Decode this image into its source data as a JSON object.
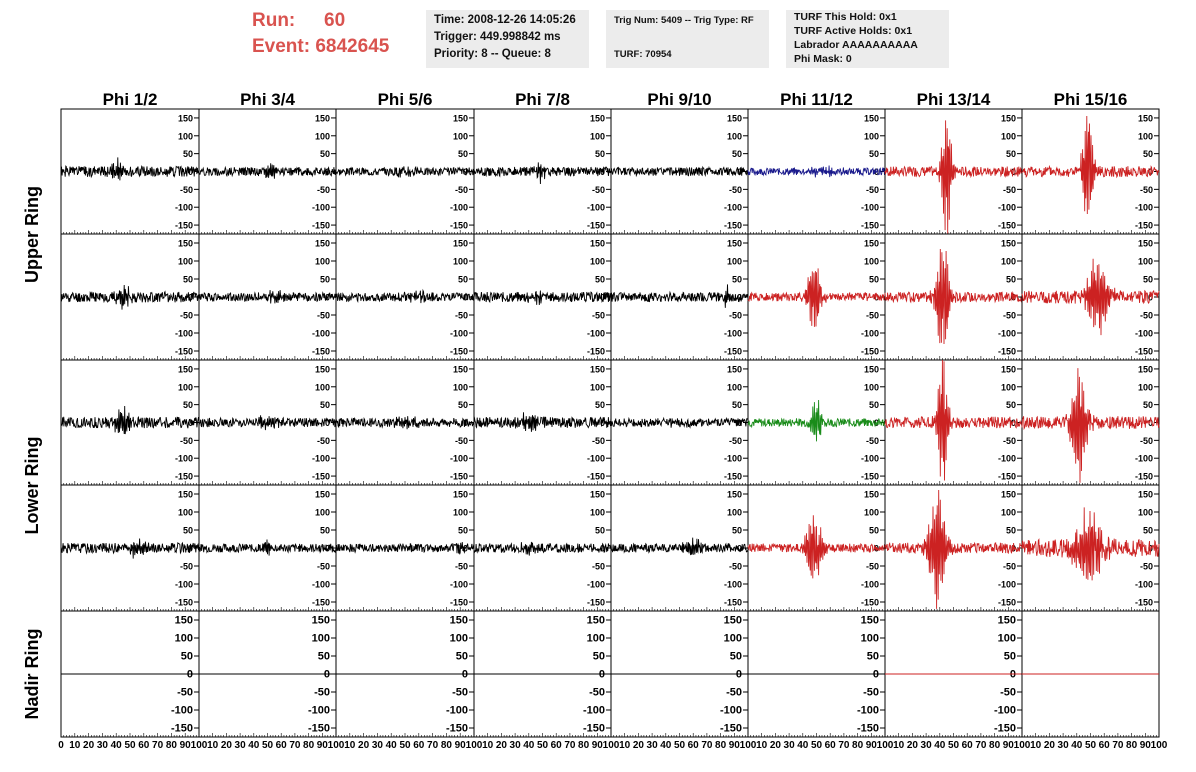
{
  "header": {
    "run_label": "Run:",
    "run_value": "60",
    "event_label": "Event:",
    "event_value": "6842645",
    "time": "Time: 2008-12-26 14:05:26",
    "trigger": "Trigger: 449.998842 ms",
    "priority": "Priority: 8 -- Queue: 8",
    "trig_num": "Trig Num: 5409 -- Trig Type: RF",
    "turf": "TURF: 70954",
    "turf_this_hold": "TURF This Hold: 0x1",
    "turf_active_holds": "TURF Active Holds: 0x1",
    "labrador": "Labrador AAAAAAAAAA",
    "phi_mask": "Phi Mask: 0"
  },
  "chart_data": {
    "type": "line",
    "columns": [
      "Phi 1/2",
      "Phi 3/4",
      "Phi 5/6",
      "Phi 7/8",
      "Phi 9/10",
      "Phi 11/12",
      "Phi 13/14",
      "Phi 15/16"
    ],
    "row_labels": [
      {
        "label": "Upper Ring",
        "rows": [
          0,
          1
        ]
      },
      {
        "label": "Lower Ring",
        "rows": [
          2,
          3
        ]
      },
      {
        "label": "Nadir Ring",
        "rows": [
          4
        ]
      }
    ],
    "ylim": [
      -175,
      175
    ],
    "yticks": [
      -150,
      -100,
      -50,
      0,
      50,
      100,
      150
    ],
    "xlim": [
      0,
      100
    ],
    "xticks": [
      0,
      10,
      20,
      30,
      40,
      50,
      60,
      70,
      80,
      90,
      100
    ],
    "colors": {
      "black": "#000000",
      "red": "#cc2222",
      "blue": "#1a1a8c",
      "green": "#1a8c1a"
    },
    "cells": [
      [
        {
          "color": "black",
          "noise": 15,
          "burst": 30,
          "bc": 42,
          "bw": 4,
          "seed": 1
        },
        {
          "color": "black",
          "noise": 12,
          "burst": 14,
          "bc": 52,
          "bw": 6,
          "seed": 2
        },
        {
          "color": "black",
          "noise": 11,
          "burst": 10,
          "bc": 50,
          "bw": 8,
          "seed": 3
        },
        {
          "color": "black",
          "noise": 13,
          "burst": 20,
          "bc": 48,
          "bw": 5,
          "seed": 4
        },
        {
          "color": "black",
          "noise": 12,
          "burst": 0,
          "bc": 50,
          "bw": 8,
          "seed": 5
        },
        {
          "color": "blue",
          "noise": 10,
          "burst": 8,
          "bc": 55,
          "bw": 15,
          "seed": 6
        },
        {
          "color": "red",
          "noise": 14,
          "burst": 150,
          "bc": 45,
          "bw": 4,
          "seed": 7
        },
        {
          "color": "red",
          "noise": 15,
          "burst": 150,
          "bc": 48,
          "bw": 4,
          "seed": 8
        }
      ],
      [
        {
          "color": "black",
          "noise": 15,
          "burst": 30,
          "bc": 45,
          "bw": 4,
          "seed": 11
        },
        {
          "color": "black",
          "noise": 12,
          "burst": 12,
          "bc": 55,
          "bw": 8,
          "seed": 12
        },
        {
          "color": "black",
          "noise": 12,
          "burst": 10,
          "bc": 60,
          "bw": 8,
          "seed": 13
        },
        {
          "color": "black",
          "noise": 14,
          "burst": 12,
          "bc": 45,
          "bw": 8,
          "seed": 14
        },
        {
          "color": "black",
          "noise": 13,
          "burst": 30,
          "bc": 85,
          "bw": 2,
          "seed": 15
        },
        {
          "color": "red",
          "noise": 12,
          "burst": 90,
          "bc": 48,
          "bw": 5,
          "seed": 16
        },
        {
          "color": "red",
          "noise": 14,
          "burst": 150,
          "bc": 42,
          "bw": 5,
          "seed": 17
        },
        {
          "color": "red",
          "noise": 18,
          "burst": 90,
          "bc": 55,
          "bw": 8,
          "seed": 18
        }
      ],
      [
        {
          "color": "black",
          "noise": 16,
          "burst": 30,
          "bc": 45,
          "bw": 6,
          "seed": 21
        },
        {
          "color": "black",
          "noise": 13,
          "burst": 10,
          "bc": 50,
          "bw": 8,
          "seed": 22
        },
        {
          "color": "black",
          "noise": 13,
          "burst": 12,
          "bc": 50,
          "bw": 8,
          "seed": 23
        },
        {
          "color": "black",
          "noise": 15,
          "burst": 22,
          "bc": 40,
          "bw": 6,
          "seed": 24
        },
        {
          "color": "black",
          "noise": 12,
          "burst": 6,
          "bc": 50,
          "bw": 8,
          "seed": 25
        },
        {
          "color": "green",
          "noise": 12,
          "burst": 60,
          "bc": 50,
          "bw": 4,
          "seed": 26
        },
        {
          "color": "red",
          "noise": 16,
          "burst": 160,
          "bc": 42,
          "bw": 4,
          "seed": 27
        },
        {
          "color": "red",
          "noise": 18,
          "burst": 140,
          "bc": 42,
          "bw": 6,
          "seed": 28
        }
      ],
      [
        {
          "color": "black",
          "noise": 14,
          "burst": 20,
          "bc": 55,
          "bw": 5,
          "seed": 31
        },
        {
          "color": "black",
          "noise": 12,
          "burst": 10,
          "bc": 50,
          "bw": 8,
          "seed": 32
        },
        {
          "color": "black",
          "noise": 12,
          "burst": 10,
          "bc": 90,
          "bw": 5,
          "seed": 33
        },
        {
          "color": "black",
          "noise": 13,
          "burst": 10,
          "bc": 40,
          "bw": 8,
          "seed": 34
        },
        {
          "color": "black",
          "noise": 12,
          "burst": 22,
          "bc": 60,
          "bw": 6,
          "seed": 35
        },
        {
          "color": "red",
          "noise": 12,
          "burst": 90,
          "bc": 48,
          "bw": 6,
          "seed": 36
        },
        {
          "color": "red",
          "noise": 15,
          "burst": 150,
          "bc": 38,
          "bw": 6,
          "seed": 37
        },
        {
          "color": "red",
          "noise": 25,
          "burst": 80,
          "bc": 48,
          "bw": 12,
          "seed": 38
        }
      ],
      [
        {
          "color": "black",
          "flat": true
        },
        {
          "color": "black",
          "flat": true
        },
        {
          "color": "black",
          "flat": true
        },
        {
          "color": "black",
          "flat": true
        },
        {
          "color": "black",
          "flat": true
        },
        {
          "color": "black",
          "flat": true
        },
        {
          "color": "red",
          "flat": true
        },
        {
          "color": "red",
          "flat": true
        }
      ]
    ]
  }
}
